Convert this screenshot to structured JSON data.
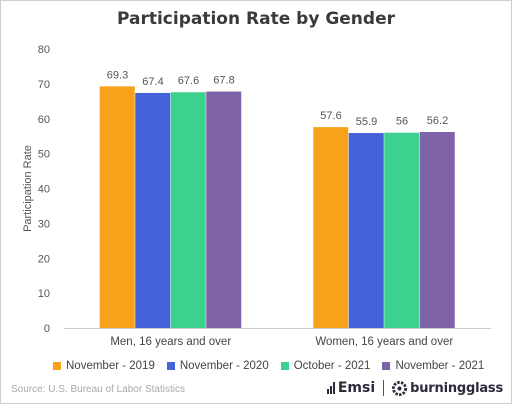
{
  "chart_data": {
    "type": "bar",
    "title": "Participation Rate by Gender",
    "ylabel": "Participation Rate",
    "xlabel": "",
    "ylim": [
      0,
      80
    ],
    "yticks": [
      0,
      10,
      20,
      30,
      40,
      50,
      60,
      70,
      80
    ],
    "grid": false,
    "legend_position": "bottom",
    "categories": [
      "Men, 16 years and over",
      "Women, 16 years and over"
    ],
    "series": [
      {
        "name": "November - 2019",
        "color": "#F7A21B",
        "values": [
          69.3,
          57.6
        ],
        "labels": [
          "69.3",
          "57.6"
        ]
      },
      {
        "name": "November - 2020",
        "color": "#4462D9",
        "values": [
          67.4,
          55.9
        ],
        "labels": [
          "67.4",
          "55.9"
        ]
      },
      {
        "name": "October - 2021",
        "color": "#3DD18F",
        "values": [
          67.6,
          56
        ],
        "labels": [
          "67.6",
          "56"
        ]
      },
      {
        "name": "November - 2021",
        "color": "#7E63A8",
        "values": [
          67.8,
          56.2
        ],
        "labels": [
          "67.8",
          "56.2"
        ]
      }
    ]
  },
  "footer": {
    "source": "Source:  U.S. Bureau of Labor Statistics",
    "logo_emsi": "Emsi",
    "logo_burningglass": "burningglass"
  }
}
